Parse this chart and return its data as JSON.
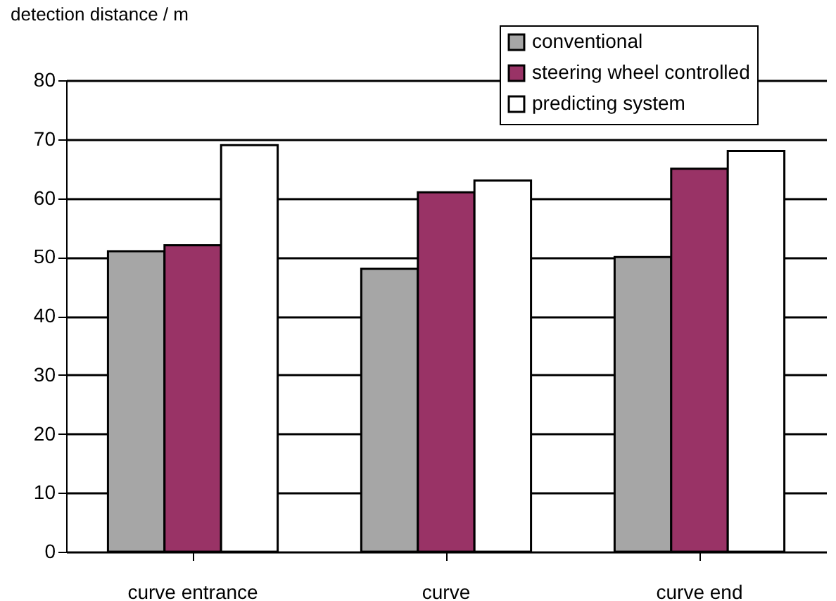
{
  "chart_data": {
    "type": "bar",
    "ylabel": "detection distance / m",
    "categories": [
      "curve entrance",
      "curve",
      "curve end"
    ],
    "series": [
      {
        "name": "conventional",
        "color": "#a6a6a6",
        "values": [
          51,
          48,
          50
        ]
      },
      {
        "name": "steering wheel controlled",
        "color": "#993366",
        "values": [
          52,
          61,
          65
        ]
      },
      {
        "name": "predicting system",
        "color": "#ffffff",
        "values": [
          69,
          63,
          68
        ]
      }
    ],
    "ylim": [
      0,
      80
    ],
    "yticks": [
      0,
      10,
      20,
      30,
      40,
      50,
      60,
      70,
      80
    ],
    "grid": "y",
    "legend": "top right"
  }
}
